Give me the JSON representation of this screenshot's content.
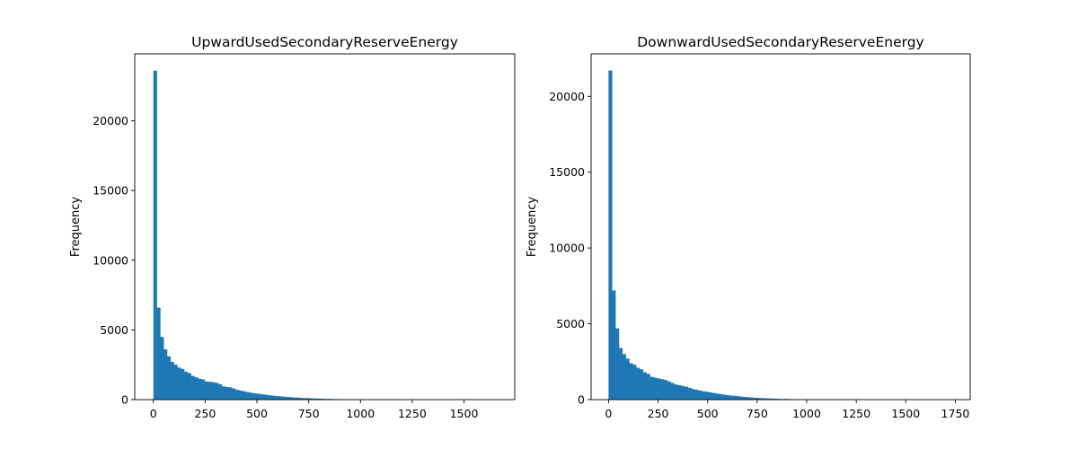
{
  "chart_data": [
    {
      "type": "bar",
      "title": "UpwardUsedSecondaryReserveEnergy",
      "xlabel": "",
      "ylabel": "Frequency",
      "xlim": [
        -90,
        1745
      ],
      "ylim": [
        0,
        24800
      ],
      "xticks": [
        0,
        250,
        500,
        750,
        1000,
        1250,
        1500
      ],
      "yticks": [
        0,
        5000,
        10000,
        15000,
        20000
      ],
      "color": "#1f77b4",
      "bin_width": 16.5,
      "bin_start": 0,
      "values": [
        23600,
        6600,
        4500,
        3600,
        3100,
        2700,
        2500,
        2300,
        2200,
        2000,
        1900,
        1700,
        1600,
        1500,
        1450,
        1300,
        1280,
        1250,
        1200,
        1100,
        950,
        900,
        880,
        800,
        700,
        650,
        600,
        550,
        500,
        450,
        430,
        400,
        370,
        330,
        300,
        270,
        250,
        230,
        210,
        190,
        170,
        150,
        140,
        120,
        110,
        100,
        90,
        80,
        70,
        65,
        55,
        50,
        45,
        40,
        35,
        30,
        28,
        25,
        22,
        20,
        18,
        16,
        14,
        12,
        10,
        9,
        8,
        7,
        6,
        5,
        5,
        4,
        4,
        3,
        3,
        3,
        2,
        2,
        2,
        2,
        2,
        1,
        1,
        1,
        1,
        1,
        1,
        1,
        1,
        1,
        1,
        1,
        1,
        1,
        1,
        1,
        1,
        1,
        1,
        1
      ]
    },
    {
      "type": "bar",
      "title": "DownwardUsedSecondaryReserveEnergy",
      "xlabel": "",
      "ylabel": "Frequency",
      "xlim": [
        -88,
        1825
      ],
      "ylim": [
        0,
        22800
      ],
      "xticks": [
        0,
        250,
        500,
        750,
        1000,
        1250,
        1500,
        1750
      ],
      "yticks": [
        0,
        5000,
        10000,
        15000,
        20000
      ],
      "color": "#1f77b4",
      "bin_width": 17.4,
      "bin_start": 0,
      "values": [
        21700,
        7200,
        4700,
        3400,
        3000,
        2700,
        2400,
        2300,
        2100,
        2000,
        1800,
        1700,
        1500,
        1450,
        1400,
        1350,
        1300,
        1200,
        1100,
        1000,
        950,
        900,
        850,
        780,
        700,
        650,
        600,
        550,
        520,
        480,
        440,
        400,
        370,
        330,
        300,
        270,
        250,
        230,
        200,
        180,
        160,
        140,
        120,
        110,
        100,
        90,
        80,
        70,
        60,
        50,
        45,
        40,
        35,
        30,
        25,
        22,
        20,
        18,
        16,
        14,
        12,
        10,
        9,
        8,
        7,
        6,
        5,
        5,
        4,
        4,
        3,
        3,
        3,
        2,
        2,
        2,
        2,
        2,
        1,
        1,
        1,
        1,
        1,
        1,
        1,
        1,
        1,
        1,
        1,
        1,
        1,
        1,
        1,
        1,
        1,
        1,
        1,
        1,
        1,
        1
      ]
    }
  ]
}
